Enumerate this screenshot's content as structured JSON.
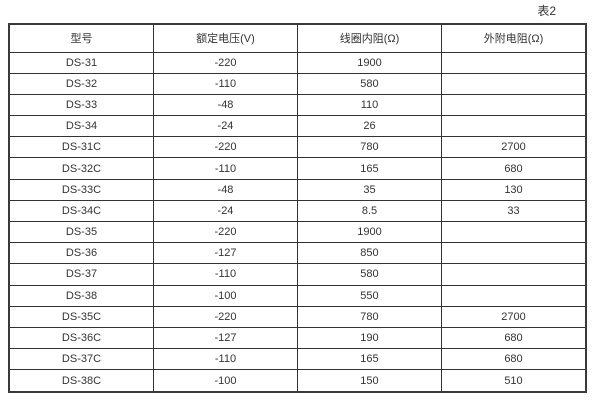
{
  "page": {
    "table_label": "表2"
  },
  "table": {
    "headers": [
      "型号",
      "额定电压(V)",
      "线圈内阻(Ω)",
      "外附电阻(Ω)"
    ],
    "rows": [
      [
        "DS-31",
        "-220",
        "1900",
        ""
      ],
      [
        "DS-32",
        "-110",
        "580",
        ""
      ],
      [
        "DS-33",
        "-48",
        "110",
        ""
      ],
      [
        "DS-34",
        "-24",
        "26",
        ""
      ],
      [
        "DS-31C",
        "-220",
        "780",
        "2700"
      ],
      [
        "DS-32C",
        "-110",
        "165",
        "680"
      ],
      [
        "DS-33C",
        "-48",
        "35",
        "130"
      ],
      [
        "DS-34C",
        "-24",
        "8.5",
        "33"
      ],
      [
        "DS-35",
        "-220",
        "1900",
        ""
      ],
      [
        "DS-36",
        "-127",
        "850",
        ""
      ],
      [
        "DS-37",
        "-110",
        "580",
        ""
      ],
      [
        "DS-38",
        "-100",
        "550",
        ""
      ],
      [
        "DS-35C",
        "-220",
        "780",
        "2700"
      ],
      [
        "DS-36C",
        "-127",
        "190",
        "680"
      ],
      [
        "DS-37C",
        "-110",
        "165",
        "680"
      ],
      [
        "DS-38C",
        "-100",
        "150",
        "510"
      ]
    ],
    "border_color": "#333333",
    "text_color": "#333333",
    "background_color": "#ffffff"
  }
}
